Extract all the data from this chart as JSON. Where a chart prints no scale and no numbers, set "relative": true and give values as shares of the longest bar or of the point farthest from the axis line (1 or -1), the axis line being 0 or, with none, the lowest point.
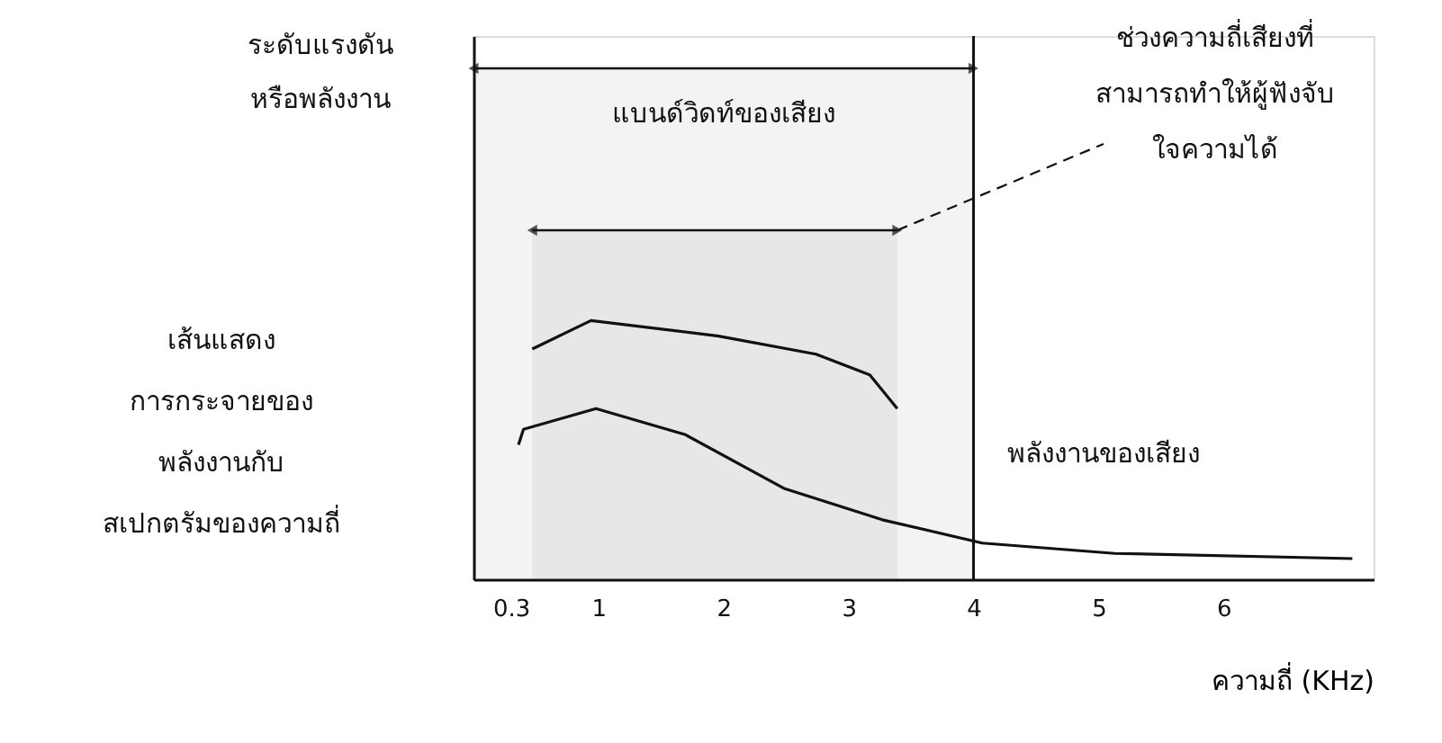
{
  "chart_data": {
    "type": "line",
    "relative": true,
    "xlabel": "ความถี่ (KHz)",
    "xlim": [
      0,
      7.2
    ],
    "xticks": [
      0.3,
      1,
      2,
      3,
      4,
      5,
      6
    ],
    "series": [
      {
        "color": "#111111",
        "x": [
          0.47,
          0.94,
          1.96,
          2.74,
          3.17,
          3.39
        ],
        "values": [
          0.89,
          1,
          0.94,
          0.87,
          0.79,
          0.66
        ]
      },
      {
        "color": "#111111",
        "x": [
          0.36,
          0.4,
          0.98,
          1.69,
          2.49,
          3.27,
          4.07,
          5.13,
          7.03
        ],
        "values": [
          0.52,
          0.58,
          0.66,
          0.56,
          0.35,
          0.23,
          0.14,
          0.1,
          0.08
        ]
      }
    ],
    "ref_lines": [
      {
        "axis": "x",
        "value": 4,
        "color": "#111111"
      }
    ],
    "bands": [
      {
        "axis": "x",
        "from": 0,
        "to": 4,
        "label": "แบนด์วิดท์ของเสียง",
        "color": "#111111"
      },
      {
        "axis": "x",
        "from": 0.47,
        "to": 3.39,
        "label": "ช่วงความถี่เสียงที่\nสามารถทำให้ผู้ฟังจับ\nใจความได้",
        "color": "#111111"
      }
    ],
    "annotations": [
      "ระดับแรงดัน\nหรือพลังงาน",
      "เส้นแสดง\nการกระจายของ\nพลังงานกับ\nสเปกตรัมของความถี่",
      {
        "text": "พลังงานของเสียง",
        "x": 4.07,
        "y": 0.14
      }
    ],
    "line_style": "solid",
    "grid": false
  }
}
